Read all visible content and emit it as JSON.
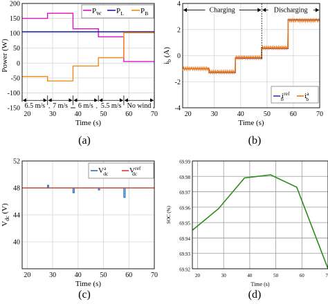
{
  "colors": {
    "wind": "#e30fc6",
    "load": "#1a1aa8",
    "battery": "#f08c1a",
    "ref": "#d83a2a",
    "meas_dc": "#2a6fb5",
    "soc": "#2a8a1a",
    "ib_ref": "#3434b8",
    "ib_meas": "#e8771e"
  },
  "panels": [
    {
      "tag": "(a)",
      "chart_data": {
        "type": "line",
        "title": "",
        "xlabel": "Time (s)",
        "ylabel": "Power (W)",
        "xlim": [
          18,
          70
        ],
        "ylim": [
          -150,
          200
        ],
        "xticks": [
          "20",
          "30",
          "40",
          "50",
          "60",
          "70"
        ],
        "yticks": [
          "-150",
          "-100",
          "-50",
          "0",
          "50",
          "100",
          "150",
          "200"
        ],
        "grid": true,
        "legend_position": "top-right",
        "series": [
          {
            "name": "P",
            "sub": "W",
            "color_key": "wind",
            "x": [
              18,
              28,
              28,
              38,
              38,
              48,
              48,
              58,
              58,
              70
            ],
            "y": [
              150,
              150,
              167,
              167,
              115,
              115,
              88,
              88,
              5,
              5
            ]
          },
          {
            "name": "P",
            "sub": "L",
            "color_key": "load",
            "x": [
              18,
              70
            ],
            "y": [
              105,
              105
            ]
          },
          {
            "name": "P",
            "sub": "B",
            "color_key": "battery",
            "x": [
              18,
              28,
              28,
              38,
              38,
              48,
              48,
              58,
              58,
              70
            ],
            "y": [
              -45,
              -45,
              -60,
              -60,
              -10,
              -10,
              18,
              18,
              102,
              102
            ]
          }
        ],
        "annotations": [
          {
            "text": "6.5 m/s",
            "x_start": 18,
            "x_end": 28
          },
          {
            "text": "7 m/s",
            "x_start": 28,
            "x_end": 38
          },
          {
            "text": "6 m/s",
            "x_start": 38,
            "x_end": 48
          },
          {
            "text": "5.5 m/s",
            "x_start": 48,
            "x_end": 58
          },
          {
            "text": "No wind",
            "x_start": 58,
            "x_end": 70
          }
        ]
      }
    },
    {
      "tag": "(b)",
      "chart_data": {
        "type": "line",
        "title": "",
        "xlabel": "Time (s)",
        "ylabel": "i",
        "ylabel_sub": "b",
        "ylabel_unit": "(A)",
        "xlim": [
          18,
          70
        ],
        "ylim": [
          -4,
          4
        ],
        "xticks": [
          "20",
          "30",
          "40",
          "50",
          "60",
          "70"
        ],
        "yticks": [
          "-4",
          "-2",
          "0",
          "2",
          "4"
        ],
        "grid": true,
        "legend_position": "bottom-right",
        "series": [
          {
            "name": "i",
            "sub": "b",
            "sup": "ref",
            "color_key": "ib_ref",
            "x": [
              18,
              28,
              28,
              38,
              38,
              48,
              48,
              58,
              58,
              70
            ],
            "y": [
              -1.0,
              -1.0,
              -1.3,
              -1.3,
              -0.2,
              -0.2,
              0.55,
              0.55,
              2.75,
              2.75
            ]
          },
          {
            "name": "i",
            "sub": "b",
            "sup": "a",
            "color_key": "ib_meas",
            "x": [
              18,
              28,
              28,
              38,
              38,
              48,
              48,
              58,
              58,
              70
            ],
            "y": [
              -1.0,
              -1.0,
              -1.25,
              -1.25,
              -0.15,
              -0.15,
              0.6,
              0.6,
              2.7,
              2.7
            ]
          }
        ],
        "annotations": [
          {
            "text": "Charging",
            "x_start": 18,
            "x_end": 48,
            "y": 3.5
          },
          {
            "text": "Discharging",
            "x_start": 48,
            "x_end": 70,
            "y": 3.5
          }
        ]
      }
    },
    {
      "tag": "(c)",
      "chart_data": {
        "type": "line",
        "title": "",
        "xlabel": "Time (s)",
        "ylabel": "V",
        "ylabel_sub": "dc",
        "ylabel_unit": "(V)",
        "xlim": [
          18,
          70
        ],
        "ylim": [
          36,
          52
        ],
        "xticks": [
          "20",
          "30",
          "40",
          "50",
          "60",
          "70"
        ],
        "yticks": [
          "40",
          "44",
          "48",
          "52"
        ],
        "grid": true,
        "legend_position": "top-right",
        "series": [
          {
            "name": "V",
            "sub": "dc",
            "sup": "a",
            "color_key": "meas_dc",
            "x": [
              18,
              28,
              28,
              28.4,
              28.4,
              38,
              38,
              38.5,
              38.5,
              48,
              48,
              48.5,
              48.5,
              58,
              58,
              58.5,
              58.5,
              70
            ],
            "y": [
              48,
              48,
              48.4,
              48.4,
              48,
              48,
              47.3,
              47.3,
              48,
              48,
              47.7,
              47.7,
              48,
              48,
              46.6,
              46.6,
              48,
              48
            ]
          },
          {
            "name": "V",
            "sub": "dc",
            "sup": "ref",
            "color_key": "ref",
            "x": [
              18,
              70
            ],
            "y": [
              48,
              48
            ]
          }
        ]
      }
    },
    {
      "tag": "(d)",
      "chart_data": {
        "type": "line",
        "title": "",
        "xlabel": "Time (s)",
        "ylabel": "SOC (%)",
        "xlim": [
          18,
          70
        ],
        "ylim": [
          69.92,
          69.99
        ],
        "xticks": [
          "20",
          "30",
          "40",
          "50",
          "60",
          "70"
        ],
        "yticks": [
          "69.92",
          "69.93",
          "69.94",
          "69.95",
          "69.96",
          "69.97",
          "69.98",
          "69.99"
        ],
        "grid": true,
        "series": [
          {
            "name": "",
            "color_key": "soc",
            "x": [
              18,
              28,
              38,
              48,
              58,
              70
            ],
            "y": [
              69.945,
              69.959,
              69.979,
              69.981,
              69.973,
              69.92
            ]
          }
        ]
      }
    }
  ]
}
